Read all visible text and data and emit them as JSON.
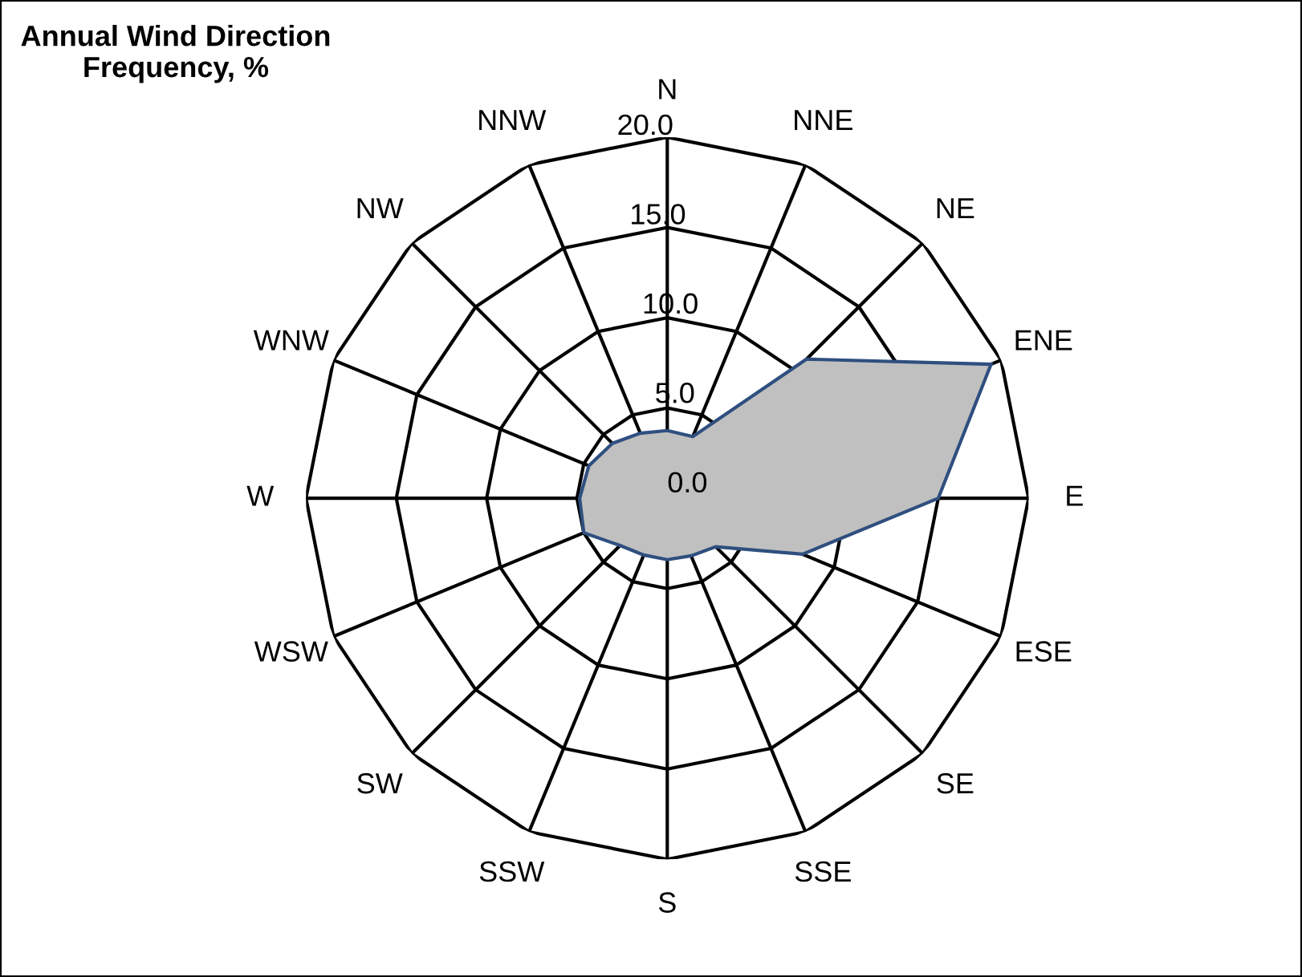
{
  "chart_data": {
    "type": "radar",
    "title": "Annual Wind Direction\nFrequency, %",
    "categories": [
      "N",
      "NNE",
      "NE",
      "ENE",
      "E",
      "ESE",
      "SE",
      "SSE",
      "S",
      "SSW",
      "SW",
      "WSW",
      "W",
      "WNW",
      "NW",
      "NNW"
    ],
    "series": [
      {
        "color": "#c0c0c0",
        "values": [
          3.75,
          3.7,
          10.9,
          19.4,
          15.0,
          8.1,
          3.8,
          3.45,
          3.4,
          3.4,
          3.7,
          5.0,
          4.85,
          4.7,
          4.3,
          3.9
        ]
      }
    ],
    "ylim": [
      0,
      20
    ],
    "yticks": [
      {
        "value": 0,
        "label": "0.0"
      },
      {
        "value": 5,
        "label": "5.0"
      },
      {
        "value": 10,
        "label": "10.0"
      },
      {
        "value": 15,
        "label": "15.0"
      },
      {
        "value": 20,
        "label": "20.0"
      }
    ],
    "grid": true,
    "legend": false
  }
}
